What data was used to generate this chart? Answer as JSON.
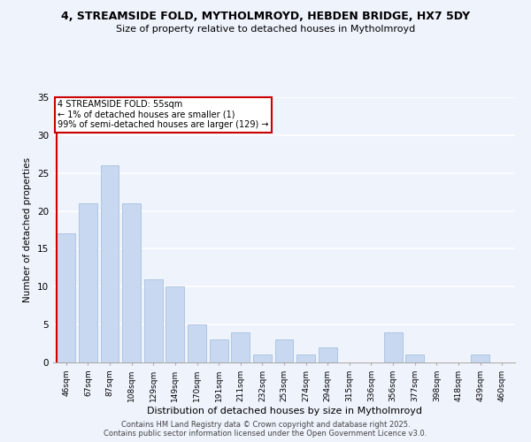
{
  "title": "4, STREAMSIDE FOLD, MYTHOLMROYD, HEBDEN BRIDGE, HX7 5DY",
  "subtitle": "Size of property relative to detached houses in Mytholmroyd",
  "xlabel": "Distribution of detached houses by size in Mytholmroyd",
  "ylabel": "Number of detached properties",
  "bar_labels": [
    "46sqm",
    "67sqm",
    "87sqm",
    "108sqm",
    "129sqm",
    "149sqm",
    "170sqm",
    "191sqm",
    "211sqm",
    "232sqm",
    "253sqm",
    "274sqm",
    "294sqm",
    "315sqm",
    "336sqm",
    "356sqm",
    "377sqm",
    "398sqm",
    "418sqm",
    "439sqm",
    "460sqm"
  ],
  "bar_values": [
    17,
    21,
    26,
    21,
    11,
    10,
    5,
    3,
    4,
    1,
    3,
    1,
    2,
    0,
    0,
    4,
    1,
    0,
    0,
    1,
    0
  ],
  "bar_color": "#c8d8f0",
  "bar_edge_color": "#a8c0e0",
  "annotation_title": "4 STREAMSIDE FOLD: 55sqm",
  "annotation_line1": "← 1% of detached houses are smaller (1)",
  "annotation_line2": "99% of semi-detached houses are larger (129) →",
  "marker_line_color": "#cc0000",
  "ylim": [
    0,
    35
  ],
  "yticks": [
    0,
    5,
    10,
    15,
    20,
    25,
    30,
    35
  ],
  "bg_color": "#eef3fc",
  "footer_line1": "Contains HM Land Registry data © Crown copyright and database right 2025.",
  "footer_line2": "Contains public sector information licensed under the Open Government Licence v3.0."
}
